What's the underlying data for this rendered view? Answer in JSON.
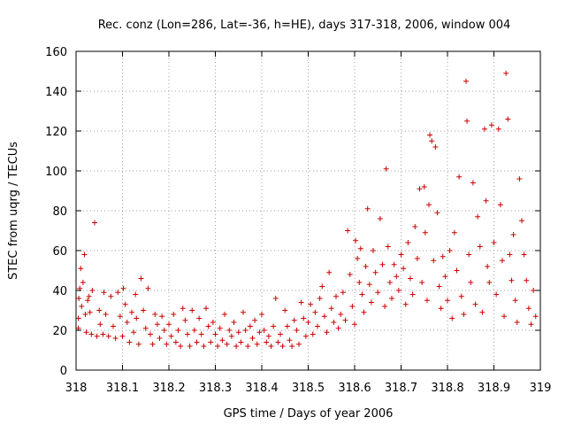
{
  "chart_data": {
    "type": "scatter",
    "title": "Rec. conz (Lon=286, Lat=-36, h=HE), days 317-318, 2006, window 004",
    "xlabel": "GPS time / Days of year 2006",
    "ylabel": "STEC from uqrg / TECUs",
    "xlim": [
      318,
      319
    ],
    "ylim": [
      0,
      160
    ],
    "xticks": [
      "318",
      "318.1",
      "318.2",
      "318.3",
      "318.4",
      "318.5",
      "318.6",
      "318.7",
      "318.8",
      "318.9",
      "319"
    ],
    "yticks": [
      "0",
      "20",
      "40",
      "60",
      "80",
      "100",
      "120",
      "140",
      "160"
    ],
    "grid": true,
    "marker": "+",
    "color": "#cc0000",
    "series": [
      {
        "points": [
          [
            318.005,
            21
          ],
          [
            318.005,
            26
          ],
          [
            318.006,
            36
          ],
          [
            318.008,
            41
          ],
          [
            318.01,
            51
          ],
          [
            318.012,
            32
          ],
          [
            318.015,
            44
          ],
          [
            318.018,
            58
          ],
          [
            318.02,
            28
          ],
          [
            318.022,
            19
          ],
          [
            318.025,
            35
          ],
          [
            318.028,
            37
          ],
          [
            318.03,
            29
          ],
          [
            318.033,
            18
          ],
          [
            318.035,
            40
          ],
          [
            318.04,
            74
          ],
          [
            318.045,
            17
          ],
          [
            318.05,
            30
          ],
          [
            318.052,
            23
          ],
          [
            318.058,
            18
          ],
          [
            318.06,
            39
          ],
          [
            318.064,
            28
          ],
          [
            318.07,
            17
          ],
          [
            318.075,
            37
          ],
          [
            318.08,
            22
          ],
          [
            318.085,
            16
          ],
          [
            318.09,
            39
          ],
          [
            318.095,
            27
          ],
          [
            318.1,
            17
          ],
          [
            318.102,
            41
          ],
          [
            318.106,
            33
          ],
          [
            318.11,
            24
          ],
          [
            318.115,
            14
          ],
          [
            318.12,
            29
          ],
          [
            318.124,
            19
          ],
          [
            318.128,
            38
          ],
          [
            318.13,
            26
          ],
          [
            318.135,
            13
          ],
          [
            318.14,
            46
          ],
          [
            318.145,
            30
          ],
          [
            318.15,
            21
          ],
          [
            318.155,
            41
          ],
          [
            318.16,
            18
          ],
          [
            318.165,
            13
          ],
          [
            318.17,
            28
          ],
          [
            318.175,
            23
          ],
          [
            318.18,
            16
          ],
          [
            318.185,
            27
          ],
          [
            318.19,
            20
          ],
          [
            318.195,
            13
          ],
          [
            318.2,
            23
          ],
          [
            318.205,
            17
          ],
          [
            318.21,
            28
          ],
          [
            318.215,
            14
          ],
          [
            318.22,
            20
          ],
          [
            318.225,
            12
          ],
          [
            318.23,
            31
          ],
          [
            318.235,
            25
          ],
          [
            318.24,
            18
          ],
          [
            318.245,
            12
          ],
          [
            318.25,
            30
          ],
          [
            318.255,
            20
          ],
          [
            318.26,
            14
          ],
          [
            318.265,
            26
          ],
          [
            318.27,
            18
          ],
          [
            318.275,
            12
          ],
          [
            318.28,
            31
          ],
          [
            318.285,
            22
          ],
          [
            318.29,
            14
          ],
          [
            318.295,
            24
          ],
          [
            318.3,
            18
          ],
          [
            318.305,
            12
          ],
          [
            318.31,
            21
          ],
          [
            318.315,
            15
          ],
          [
            318.32,
            28
          ],
          [
            318.325,
            13
          ],
          [
            318.33,
            20
          ],
          [
            318.335,
            17
          ],
          [
            318.34,
            24
          ],
          [
            318.345,
            12
          ],
          [
            318.35,
            19
          ],
          [
            318.355,
            14
          ],
          [
            318.36,
            29
          ],
          [
            318.365,
            20
          ],
          [
            318.37,
            12
          ],
          [
            318.375,
            22
          ],
          [
            318.38,
            16
          ],
          [
            318.385,
            25
          ],
          [
            318.39,
            13
          ],
          [
            318.395,
            19
          ],
          [
            318.4,
            28
          ],
          [
            318.405,
            20
          ],
          [
            318.41,
            14
          ],
          [
            318.415,
            17
          ],
          [
            318.42,
            12
          ],
          [
            318.425,
            22
          ],
          [
            318.43,
            36
          ],
          [
            318.435,
            14
          ],
          [
            318.44,
            18
          ],
          [
            318.445,
            12
          ],
          [
            318.45,
            30
          ],
          [
            318.455,
            22
          ],
          [
            318.46,
            15
          ],
          [
            318.465,
            12
          ],
          [
            318.47,
            25
          ],
          [
            318.475,
            20
          ],
          [
            318.48,
            13
          ],
          [
            318.485,
            34
          ],
          [
            318.49,
            26
          ],
          [
            318.495,
            17
          ],
          [
            318.5,
            24
          ],
          [
            318.505,
            33
          ],
          [
            318.51,
            18
          ],
          [
            318.515,
            29
          ],
          [
            318.52,
            22
          ],
          [
            318.525,
            36
          ],
          [
            318.53,
            42
          ],
          [
            318.535,
            27
          ],
          [
            318.54,
            19
          ],
          [
            318.545,
            49
          ],
          [
            318.55,
            31
          ],
          [
            318.555,
            24
          ],
          [
            318.56,
            37
          ],
          [
            318.565,
            21
          ],
          [
            318.57,
            28
          ],
          [
            318.575,
            39
          ],
          [
            318.58,
            25
          ],
          [
            318.585,
            70
          ],
          [
            318.59,
            48
          ],
          [
            318.595,
            32
          ],
          [
            318.6,
            23
          ],
          [
            318.602,
            65
          ],
          [
            318.606,
            56
          ],
          [
            318.61,
            44
          ],
          [
            318.613,
            61
          ],
          [
            318.616,
            38
          ],
          [
            318.62,
            29
          ],
          [
            318.624,
            52
          ],
          [
            318.628,
            81
          ],
          [
            318.632,
            43
          ],
          [
            318.636,
            34
          ],
          [
            318.64,
            60
          ],
          [
            318.645,
            49
          ],
          [
            318.65,
            39
          ],
          [
            318.655,
            76
          ],
          [
            318.66,
            53
          ],
          [
            318.665,
            32
          ],
          [
            318.668,
            101
          ],
          [
            318.672,
            62
          ],
          [
            318.676,
            44
          ],
          [
            318.68,
            36
          ],
          [
            318.685,
            53
          ],
          [
            318.69,
            47
          ],
          [
            318.695,
            40
          ],
          [
            318.7,
            58
          ],
          [
            318.705,
            51
          ],
          [
            318.71,
            33
          ],
          [
            318.715,
            64
          ],
          [
            318.72,
            46
          ],
          [
            318.725,
            38
          ],
          [
            318.73,
            72
          ],
          [
            318.735,
            56
          ],
          [
            318.74,
            91
          ],
          [
            318.745,
            44
          ],
          [
            318.75,
            92
          ],
          [
            318.752,
            69
          ],
          [
            318.756,
            35
          ],
          [
            318.76,
            83
          ],
          [
            318.762,
            118
          ],
          [
            318.766,
            115
          ],
          [
            318.77,
            55
          ],
          [
            318.774,
            112
          ],
          [
            318.778,
            79
          ],
          [
            318.782,
            42
          ],
          [
            318.786,
            31
          ],
          [
            318.79,
            57
          ],
          [
            318.795,
            47
          ],
          [
            318.8,
            35
          ],
          [
            318.805,
            60
          ],
          [
            318.81,
            26
          ],
          [
            318.815,
            69
          ],
          [
            318.82,
            50
          ],
          [
            318.825,
            97
          ],
          [
            318.83,
            37
          ],
          [
            318.835,
            28
          ],
          [
            318.84,
            145
          ],
          [
            318.842,
            125
          ],
          [
            318.846,
            58
          ],
          [
            318.85,
            44
          ],
          [
            318.855,
            94
          ],
          [
            318.86,
            33
          ],
          [
            318.865,
            77
          ],
          [
            318.87,
            62
          ],
          [
            318.875,
            29
          ],
          [
            318.88,
            121
          ],
          [
            318.883,
            85
          ],
          [
            318.886,
            52
          ],
          [
            318.89,
            44
          ],
          [
            318.895,
            123
          ],
          [
            318.9,
            64
          ],
          [
            318.905,
            38
          ],
          [
            318.91,
            121
          ],
          [
            318.914,
            83
          ],
          [
            318.918,
            55
          ],
          [
            318.922,
            27
          ],
          [
            318.926,
            149
          ],
          [
            318.93,
            126
          ],
          [
            318.934,
            58
          ],
          [
            318.938,
            45
          ],
          [
            318.942,
            68
          ],
          [
            318.946,
            35
          ],
          [
            318.95,
            24
          ],
          [
            318.955,
            96
          ],
          [
            318.96,
            75
          ],
          [
            318.965,
            58
          ],
          [
            318.97,
            45
          ],
          [
            318.975,
            31
          ],
          [
            318.98,
            23
          ],
          [
            318.985,
            40
          ],
          [
            318.99,
            27
          ]
        ]
      }
    ]
  }
}
